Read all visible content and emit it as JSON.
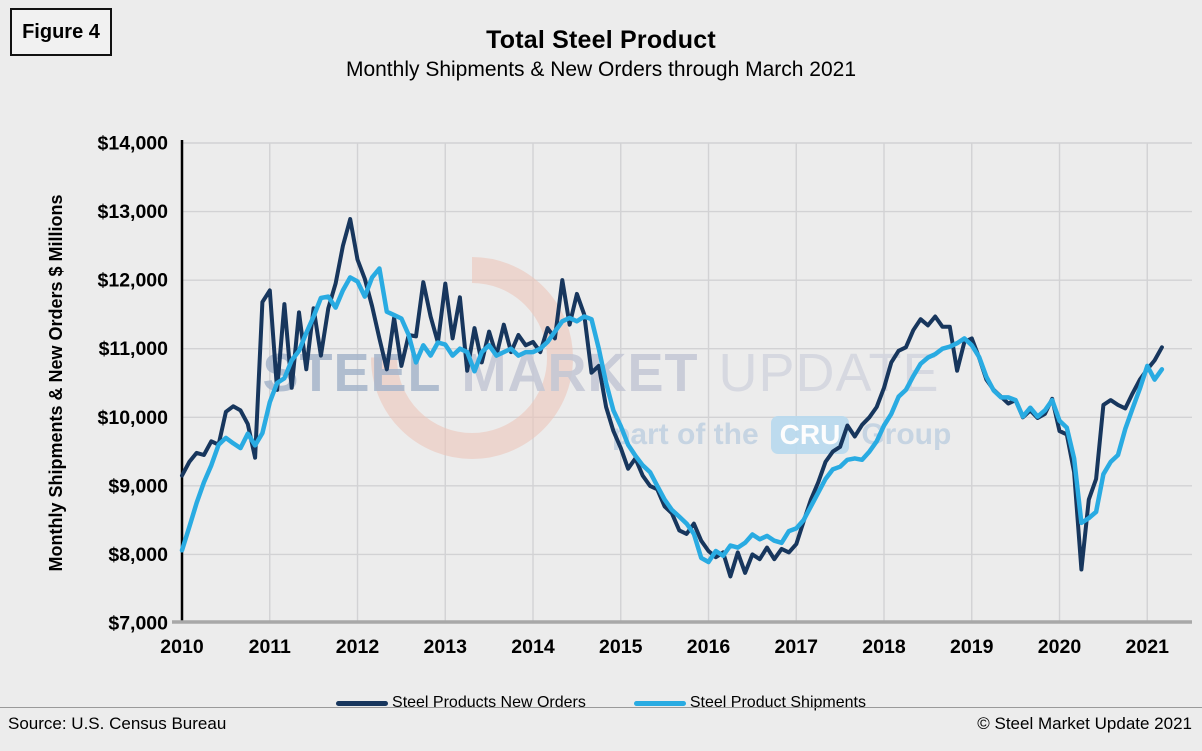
{
  "page": {
    "figure_label": "Figure 4",
    "footer": {
      "source": "Source: U.S. Census Bureau",
      "copyright": "© Steel Market Update 2021"
    }
  },
  "watermark": {
    "word1": "STEEL",
    "word2": "MARKET",
    "word3": "UPDATE",
    "line2_prefix": "part of the",
    "line2_badge": "CRU",
    "line2_suffix": "Group",
    "swoosh_color": "#edc2b6"
  },
  "legend": [
    {
      "label": "Steel Products New Orders",
      "color": "#17365d"
    },
    {
      "label": "Steel Product Shipments",
      "color": "#29abe2"
    }
  ],
  "chart_data": {
    "type": "line",
    "title": "Total Steel Product",
    "subtitle": "Monthly Shipments & New Orders through March 2021",
    "ylabel": "Monthly Shipments & New Orders $ Millions",
    "ylim": [
      7000,
      14000
    ],
    "y_tick_step": 1000,
    "y_tick_labels": [
      "$14,000",
      "$13,000",
      "$12,000",
      "$11,000",
      "$10,000",
      "$9,000",
      "$8,000",
      "$7,000"
    ],
    "x_tick_labels": [
      "2010",
      "2011",
      "2012",
      "2013",
      "2014",
      "2015",
      "2016",
      "2017",
      "2018",
      "2019",
      "2020",
      "2021"
    ],
    "x_unit": "month",
    "x_start": "Jan 2010",
    "x_end": "Mar 2021",
    "grid": true,
    "legend_position": "bottom",
    "axis_colors": {
      "left_axis": "#000000",
      "bottom_axis": "#a8a8a8",
      "gridline": "#d2d2d4"
    },
    "series": [
      {
        "name": "Steel Products New Orders",
        "color": "#17365d",
        "width": 4,
        "values": [
          9150,
          9350,
          9480,
          9450,
          9650,
          9600,
          10080,
          10160,
          10100,
          9900,
          9410,
          11680,
          11850,
          10400,
          11650,
          10430,
          11530,
          10700,
          11590,
          10900,
          11590,
          11950,
          12500,
          12890,
          12300,
          12020,
          11620,
          11150,
          10700,
          11450,
          10750,
          11200,
          11180,
          11970,
          11470,
          11090,
          11950,
          11150,
          11750,
          10680,
          11300,
          10800,
          11250,
          10900,
          11350,
          10950,
          11200,
          11050,
          11100,
          10950,
          11300,
          11150,
          12000,
          11350,
          11800,
          11500,
          10650,
          10750,
          10150,
          9800,
          9550,
          9250,
          9400,
          9150,
          9000,
          8950,
          8700,
          8600,
          8350,
          8300,
          8450,
          8200,
          8050,
          7960,
          8030,
          7680,
          8030,
          7730,
          8000,
          7930,
          8100,
          7930,
          8080,
          8030,
          8150,
          8480,
          8800,
          9050,
          9350,
          9500,
          9570,
          9880,
          9720,
          9890,
          10000,
          10150,
          10430,
          10800,
          10970,
          11020,
          11270,
          11430,
          11340,
          11470,
          11320,
          11320,
          10680,
          11100,
          11150,
          10870,
          10550,
          10400,
          10300,
          10200,
          10250,
          10000,
          10100,
          9990,
          10050,
          10270,
          9800,
          9750,
          9200,
          7780,
          8800,
          9100,
          10180,
          10250,
          10180,
          10130,
          10350,
          10550,
          10700,
          10830,
          11020
        ]
      },
      {
        "name": "Steel Product Shipments",
        "color": "#29abe2",
        "width": 4.5,
        "values": [
          8060,
          8400,
          8750,
          9050,
          9300,
          9600,
          9700,
          9620,
          9550,
          9760,
          9590,
          9770,
          10220,
          10500,
          10570,
          10830,
          10970,
          11230,
          11470,
          11740,
          11760,
          11600,
          11850,
          12040,
          11980,
          11760,
          12040,
          12170,
          11540,
          11490,
          11440,
          11200,
          10800,
          11050,
          10900,
          11090,
          11060,
          10900,
          11000,
          10950,
          10670,
          10950,
          11050,
          10900,
          10950,
          11000,
          10900,
          10950,
          10950,
          11000,
          11100,
          11250,
          11400,
          11450,
          11400,
          11470,
          11430,
          11000,
          10500,
          10100,
          9870,
          9600,
          9440,
          9300,
          9200,
          9000,
          8800,
          8650,
          8550,
          8450,
          8300,
          7950,
          7890,
          8050,
          7980,
          8130,
          8100,
          8170,
          8290,
          8220,
          8270,
          8200,
          8170,
          8340,
          8380,
          8500,
          8700,
          8900,
          9100,
          9240,
          9280,
          9380,
          9400,
          9380,
          9500,
          9650,
          9880,
          10050,
          10300,
          10400,
          10600,
          10780,
          10870,
          10920,
          11000,
          11030,
          11080,
          11150,
          11050,
          10880,
          10590,
          10390,
          10290,
          10290,
          10250,
          10010,
          10140,
          10010,
          10100,
          10250,
          9950,
          9850,
          9400,
          8460,
          8530,
          8620,
          9170,
          9350,
          9450,
          9830,
          10130,
          10420,
          10750,
          10550,
          10700
        ]
      }
    ]
  }
}
